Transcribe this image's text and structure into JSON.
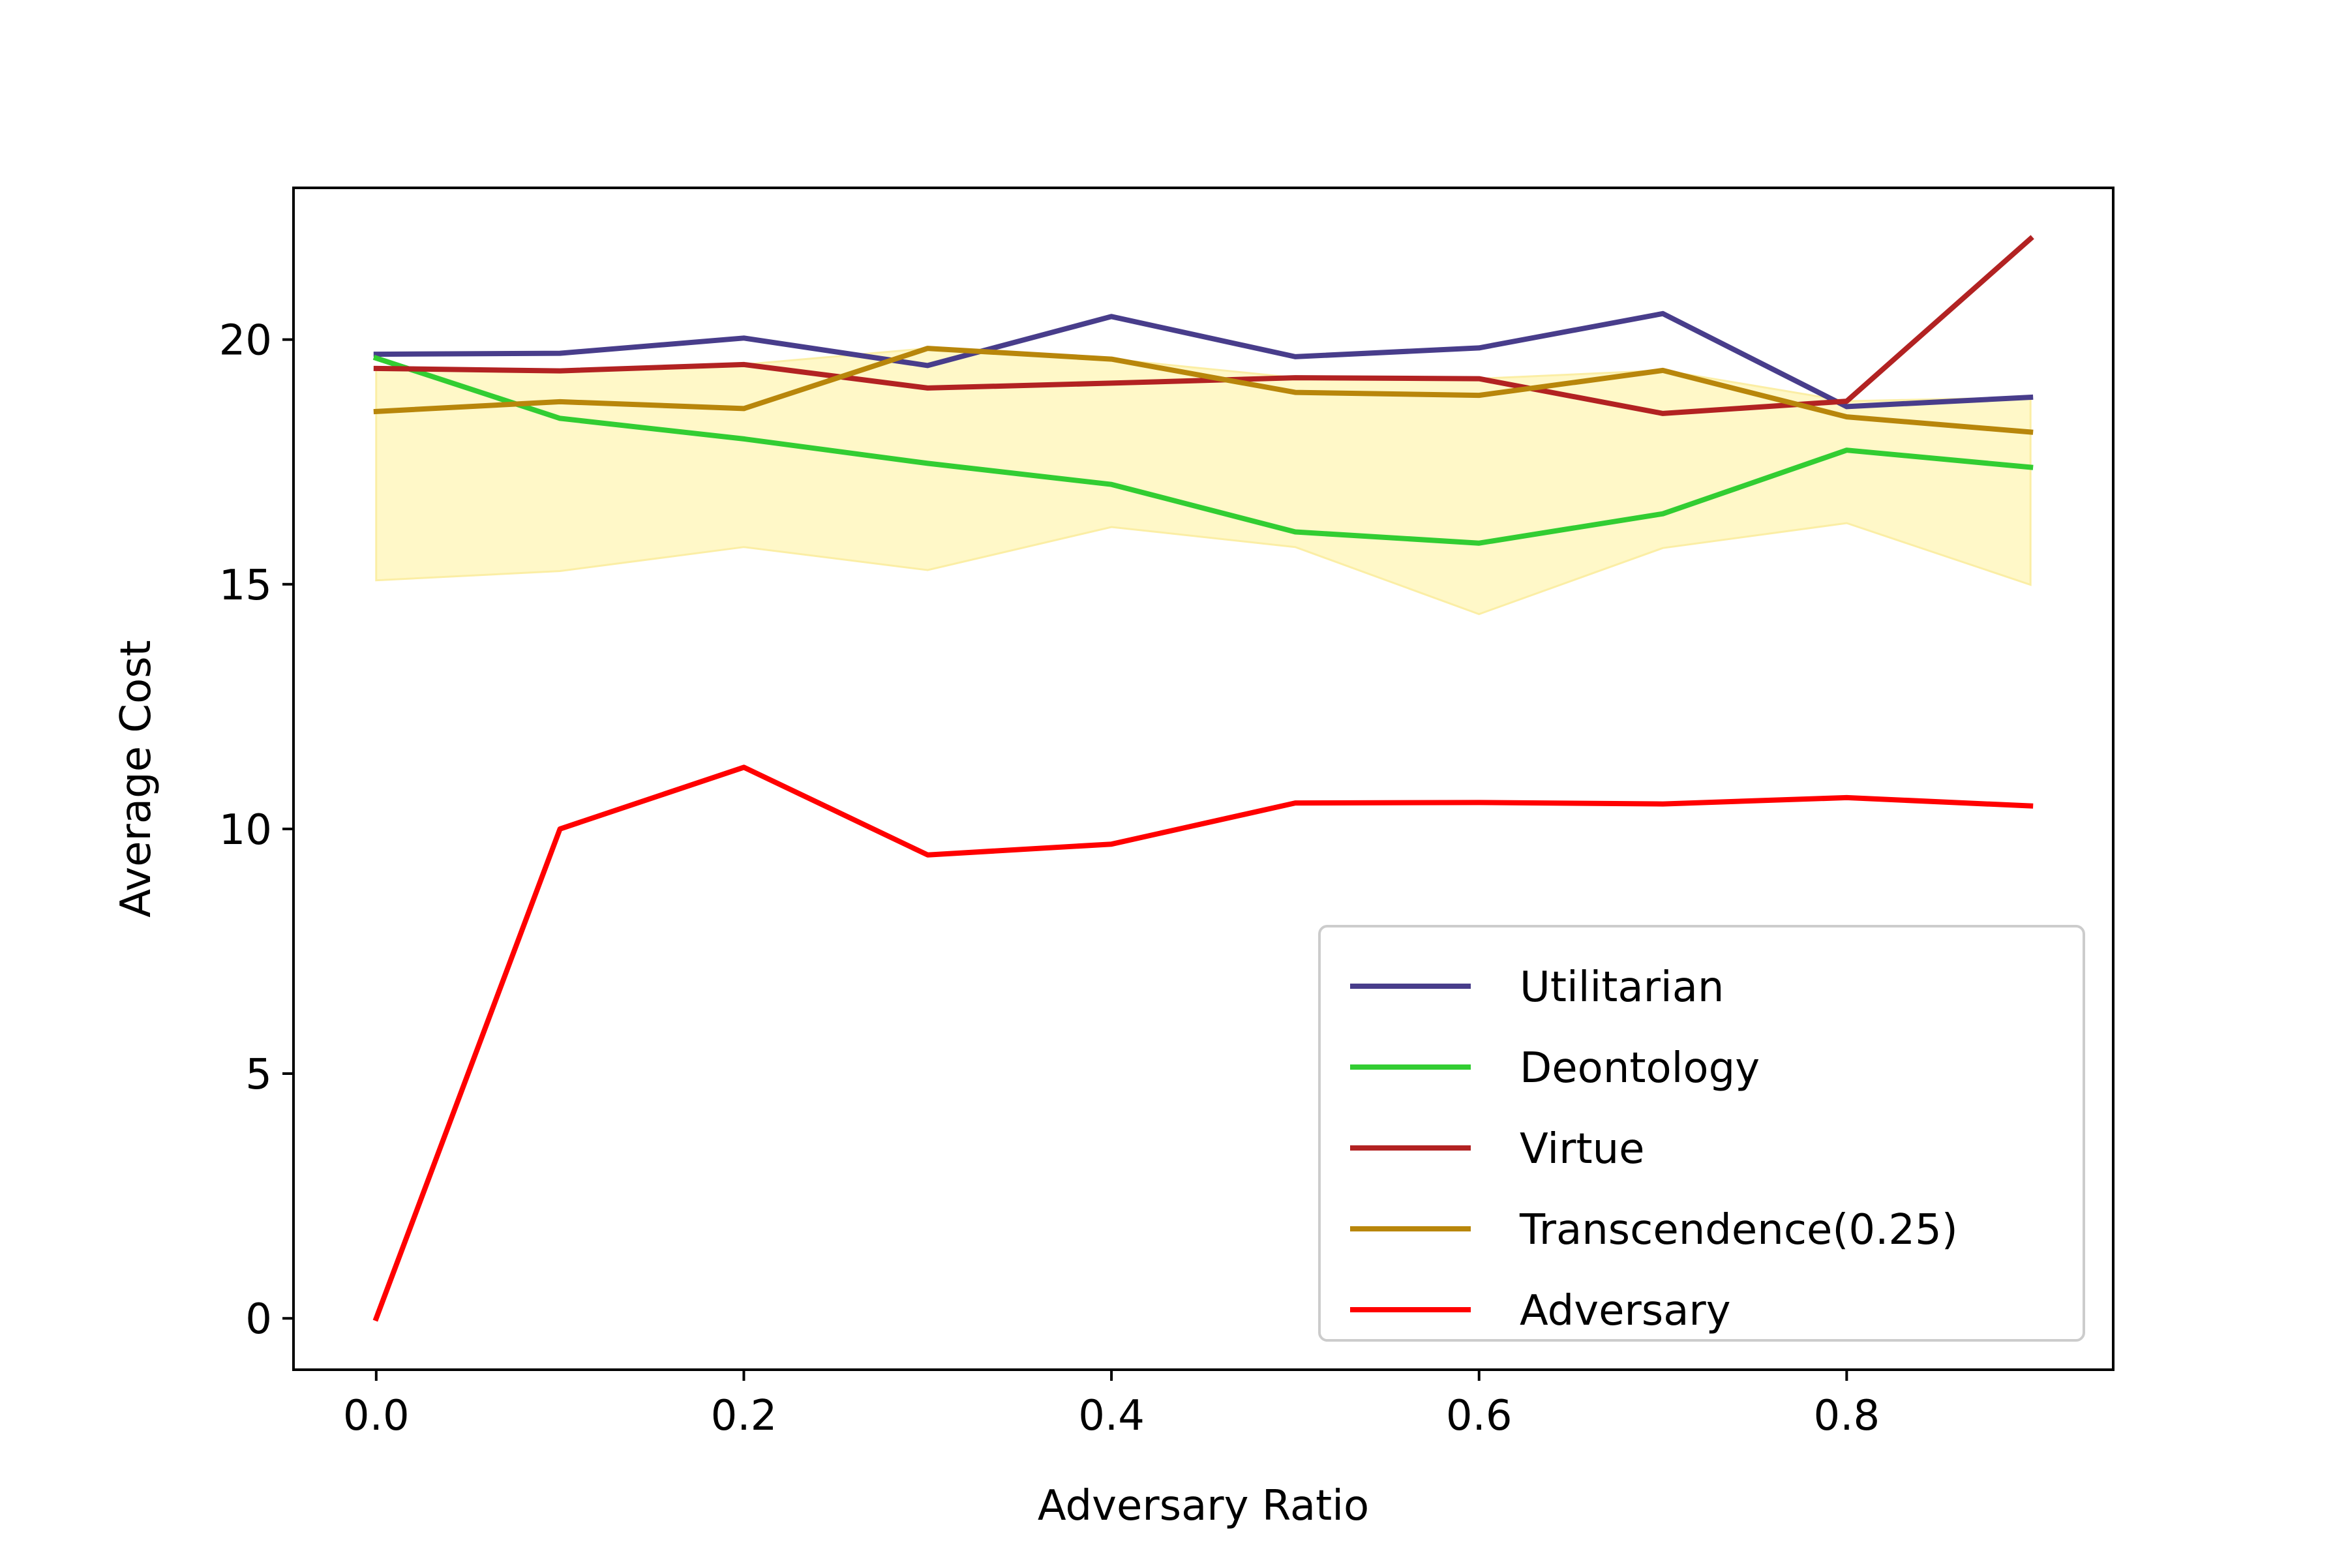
{
  "chart_data": {
    "type": "line",
    "title": "",
    "xlabel": "Adversary Ratio",
    "ylabel": "Average Cost",
    "xlim": [
      -0.045,
      0.945
    ],
    "ylim": [
      -1.05,
      23.1
    ],
    "xticks": [
      0.0,
      0.2,
      0.4,
      0.6,
      0.8
    ],
    "xtick_labels": [
      "0.0",
      "0.2",
      "0.4",
      "0.6",
      "0.8"
    ],
    "yticks": [
      0,
      5,
      10,
      15,
      20
    ],
    "ytick_labels": [
      "0",
      "5",
      "10",
      "15",
      "20"
    ],
    "grid": false,
    "legend_position": "lower-right",
    "x": [
      0.0,
      0.1,
      0.2,
      0.3,
      0.4,
      0.5,
      0.6,
      0.7,
      0.8,
      0.9
    ],
    "series": [
      {
        "name": "Utilitarian",
        "color": "#483d8b",
        "values": [
          19.7,
          19.72,
          20.03,
          19.47,
          20.47,
          19.65,
          19.83,
          20.53,
          18.63,
          18.82
        ]
      },
      {
        "name": "Deontology",
        "color": "#32cd32",
        "values": [
          19.62,
          18.39,
          17.97,
          17.47,
          17.04,
          16.07,
          15.84,
          16.44,
          17.74,
          17.39
        ]
      },
      {
        "name": "Virtue",
        "color": "#b22222",
        "values": [
          19.41,
          19.36,
          19.49,
          19.01,
          19.11,
          19.22,
          19.2,
          18.49,
          18.74,
          22.06
        ]
      },
      {
        "name": "Transcendence(0.25)",
        "color": "#b8860b",
        "values": [
          18.53,
          18.73,
          18.59,
          19.82,
          19.6,
          18.92,
          18.86,
          19.37,
          18.42,
          18.11
        ]
      },
      {
        "name": "Adversary",
        "color": "#ff0000",
        "values": [
          0.0,
          10.0,
          11.26,
          9.47,
          9.69,
          10.53,
          10.54,
          10.51,
          10.64,
          10.47
        ]
      }
    ],
    "band": {
      "color": "#fff8c8",
      "edge_color": "#fbeea5",
      "lower": [
        15.08,
        15.27,
        15.76,
        15.29,
        16.17,
        15.76,
        14.39,
        15.74,
        16.25,
        14.99
      ],
      "upper": [
        19.41,
        19.36,
        19.49,
        19.82,
        19.6,
        19.22,
        19.2,
        19.37,
        18.74,
        18.82
      ]
    }
  }
}
